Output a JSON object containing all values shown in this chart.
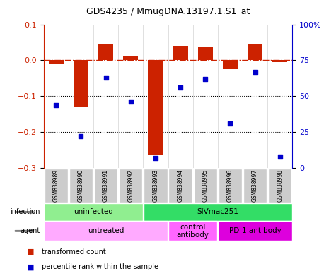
{
  "title": "GDS4235 / MmugDNA.13197.1.S1_at",
  "samples": [
    "GSM838989",
    "GSM838990",
    "GSM838991",
    "GSM838992",
    "GSM838993",
    "GSM838994",
    "GSM838995",
    "GSM838996",
    "GSM838997",
    "GSM838998"
  ],
  "bar_values": [
    -0.01,
    -0.13,
    0.045,
    0.01,
    -0.265,
    0.04,
    0.038,
    -0.025,
    0.047,
    -0.005
  ],
  "scatter_values": [
    44,
    22,
    63,
    46,
    7,
    56,
    62,
    31,
    67,
    8
  ],
  "bar_color": "#CC2200",
  "scatter_color": "#0000CC",
  "ylim_left": [
    -0.3,
    0.1
  ],
  "ylim_right": [
    0,
    100
  ],
  "yticks_left": [
    -0.3,
    -0.2,
    -0.1,
    0.0,
    0.1
  ],
  "yticks_right": [
    0,
    25,
    50,
    75,
    100
  ],
  "ytick_labels_right": [
    "0",
    "25",
    "50",
    "75",
    "100%"
  ],
  "hline_y": 0.0,
  "dotted_hlines": [
    -0.1,
    -0.2
  ],
  "infection_groups": [
    {
      "label": "uninfected",
      "start": 0,
      "end": 4,
      "color": "#90EE90"
    },
    {
      "label": "SIVmac251",
      "start": 4,
      "end": 10,
      "color": "#33DD66"
    }
  ],
  "agent_groups": [
    {
      "label": "untreated",
      "start": 0,
      "end": 5,
      "color": "#FFAAFF"
    },
    {
      "label": "control\nantibody",
      "start": 5,
      "end": 7,
      "color": "#FF66FF"
    },
    {
      "label": "PD-1 antibody",
      "start": 7,
      "end": 10,
      "color": "#DD00DD"
    }
  ],
  "legend_items": [
    {
      "label": "transformed count",
      "color": "#CC2200"
    },
    {
      "label": "percentile rank within the sample",
      "color": "#0000CC"
    }
  ],
  "infection_label": "infection",
  "agent_label": "agent",
  "background_color": "#FFFFFF",
  "tick_label_area_color": "#CCCCCC"
}
